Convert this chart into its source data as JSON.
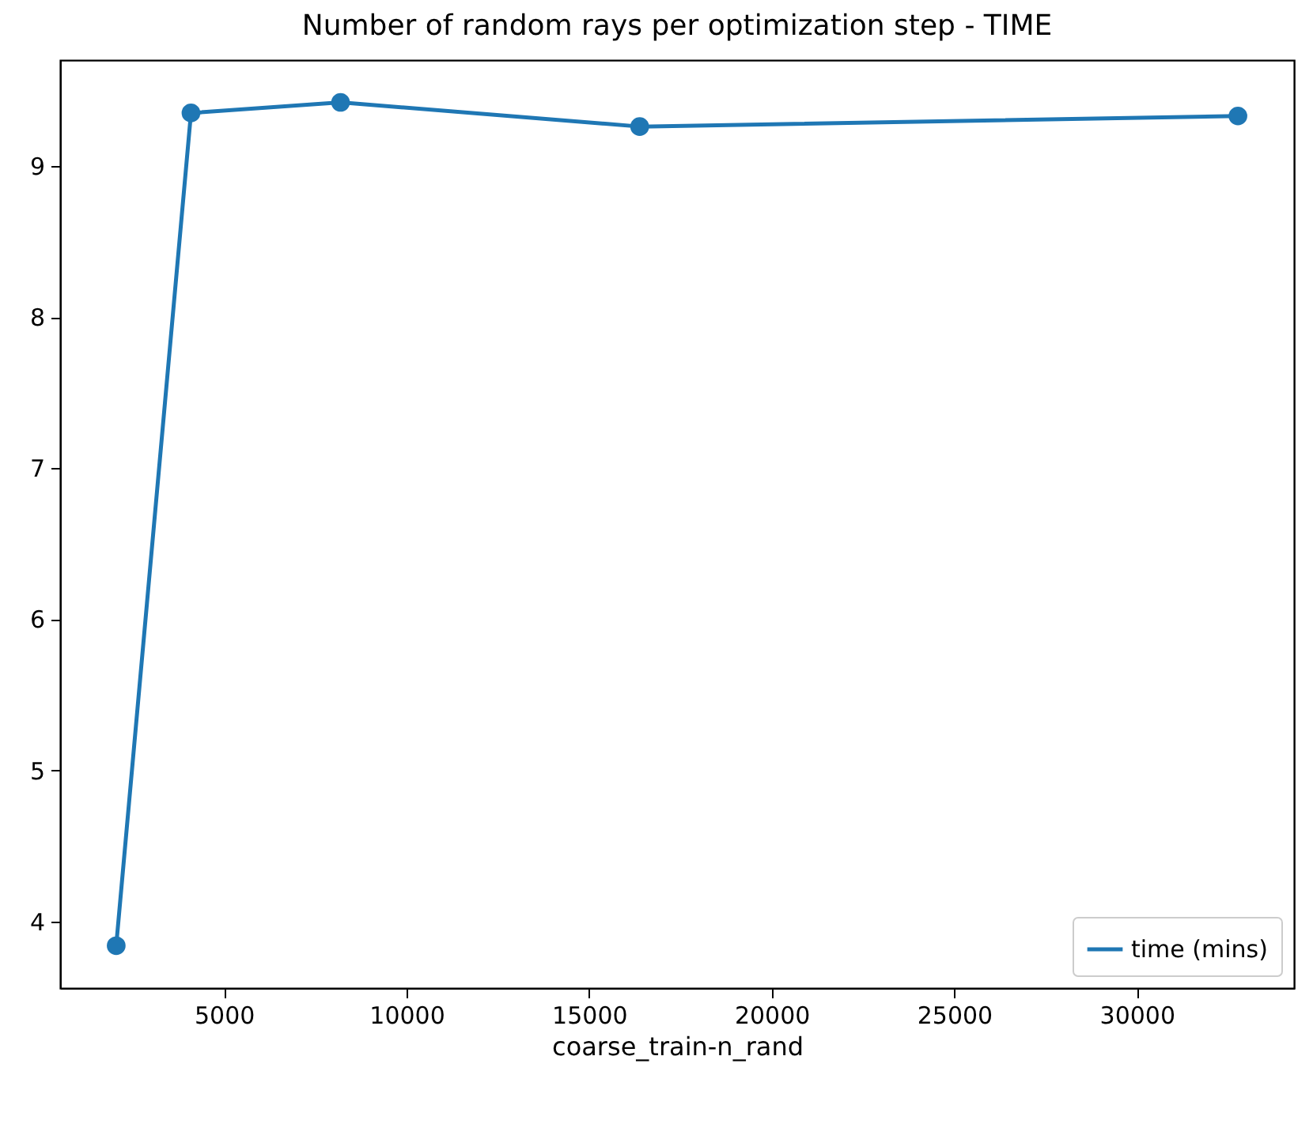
{
  "chart_data": {
    "type": "line",
    "title": "Number of random rays per optimization step - TIME",
    "xlabel": "coarse_train-n_rand",
    "x": [
      2048,
      4096,
      8192,
      16384,
      32768
    ],
    "series": [
      {
        "name": "time (mins)",
        "color": "#1f77b4",
        "values": [
          3.84,
          9.35,
          9.42,
          9.26,
          9.33
        ]
      }
    ],
    "xlim": [
      512,
      34304
    ],
    "xticks": [
      5000,
      10000,
      15000,
      20000,
      25000,
      30000
    ],
    "ylim": [
      3.56,
      9.7
    ],
    "yticks": [
      4,
      5,
      6,
      7,
      8,
      9
    ],
    "marker": "circle",
    "legend": "bottom right",
    "grid": false
  }
}
